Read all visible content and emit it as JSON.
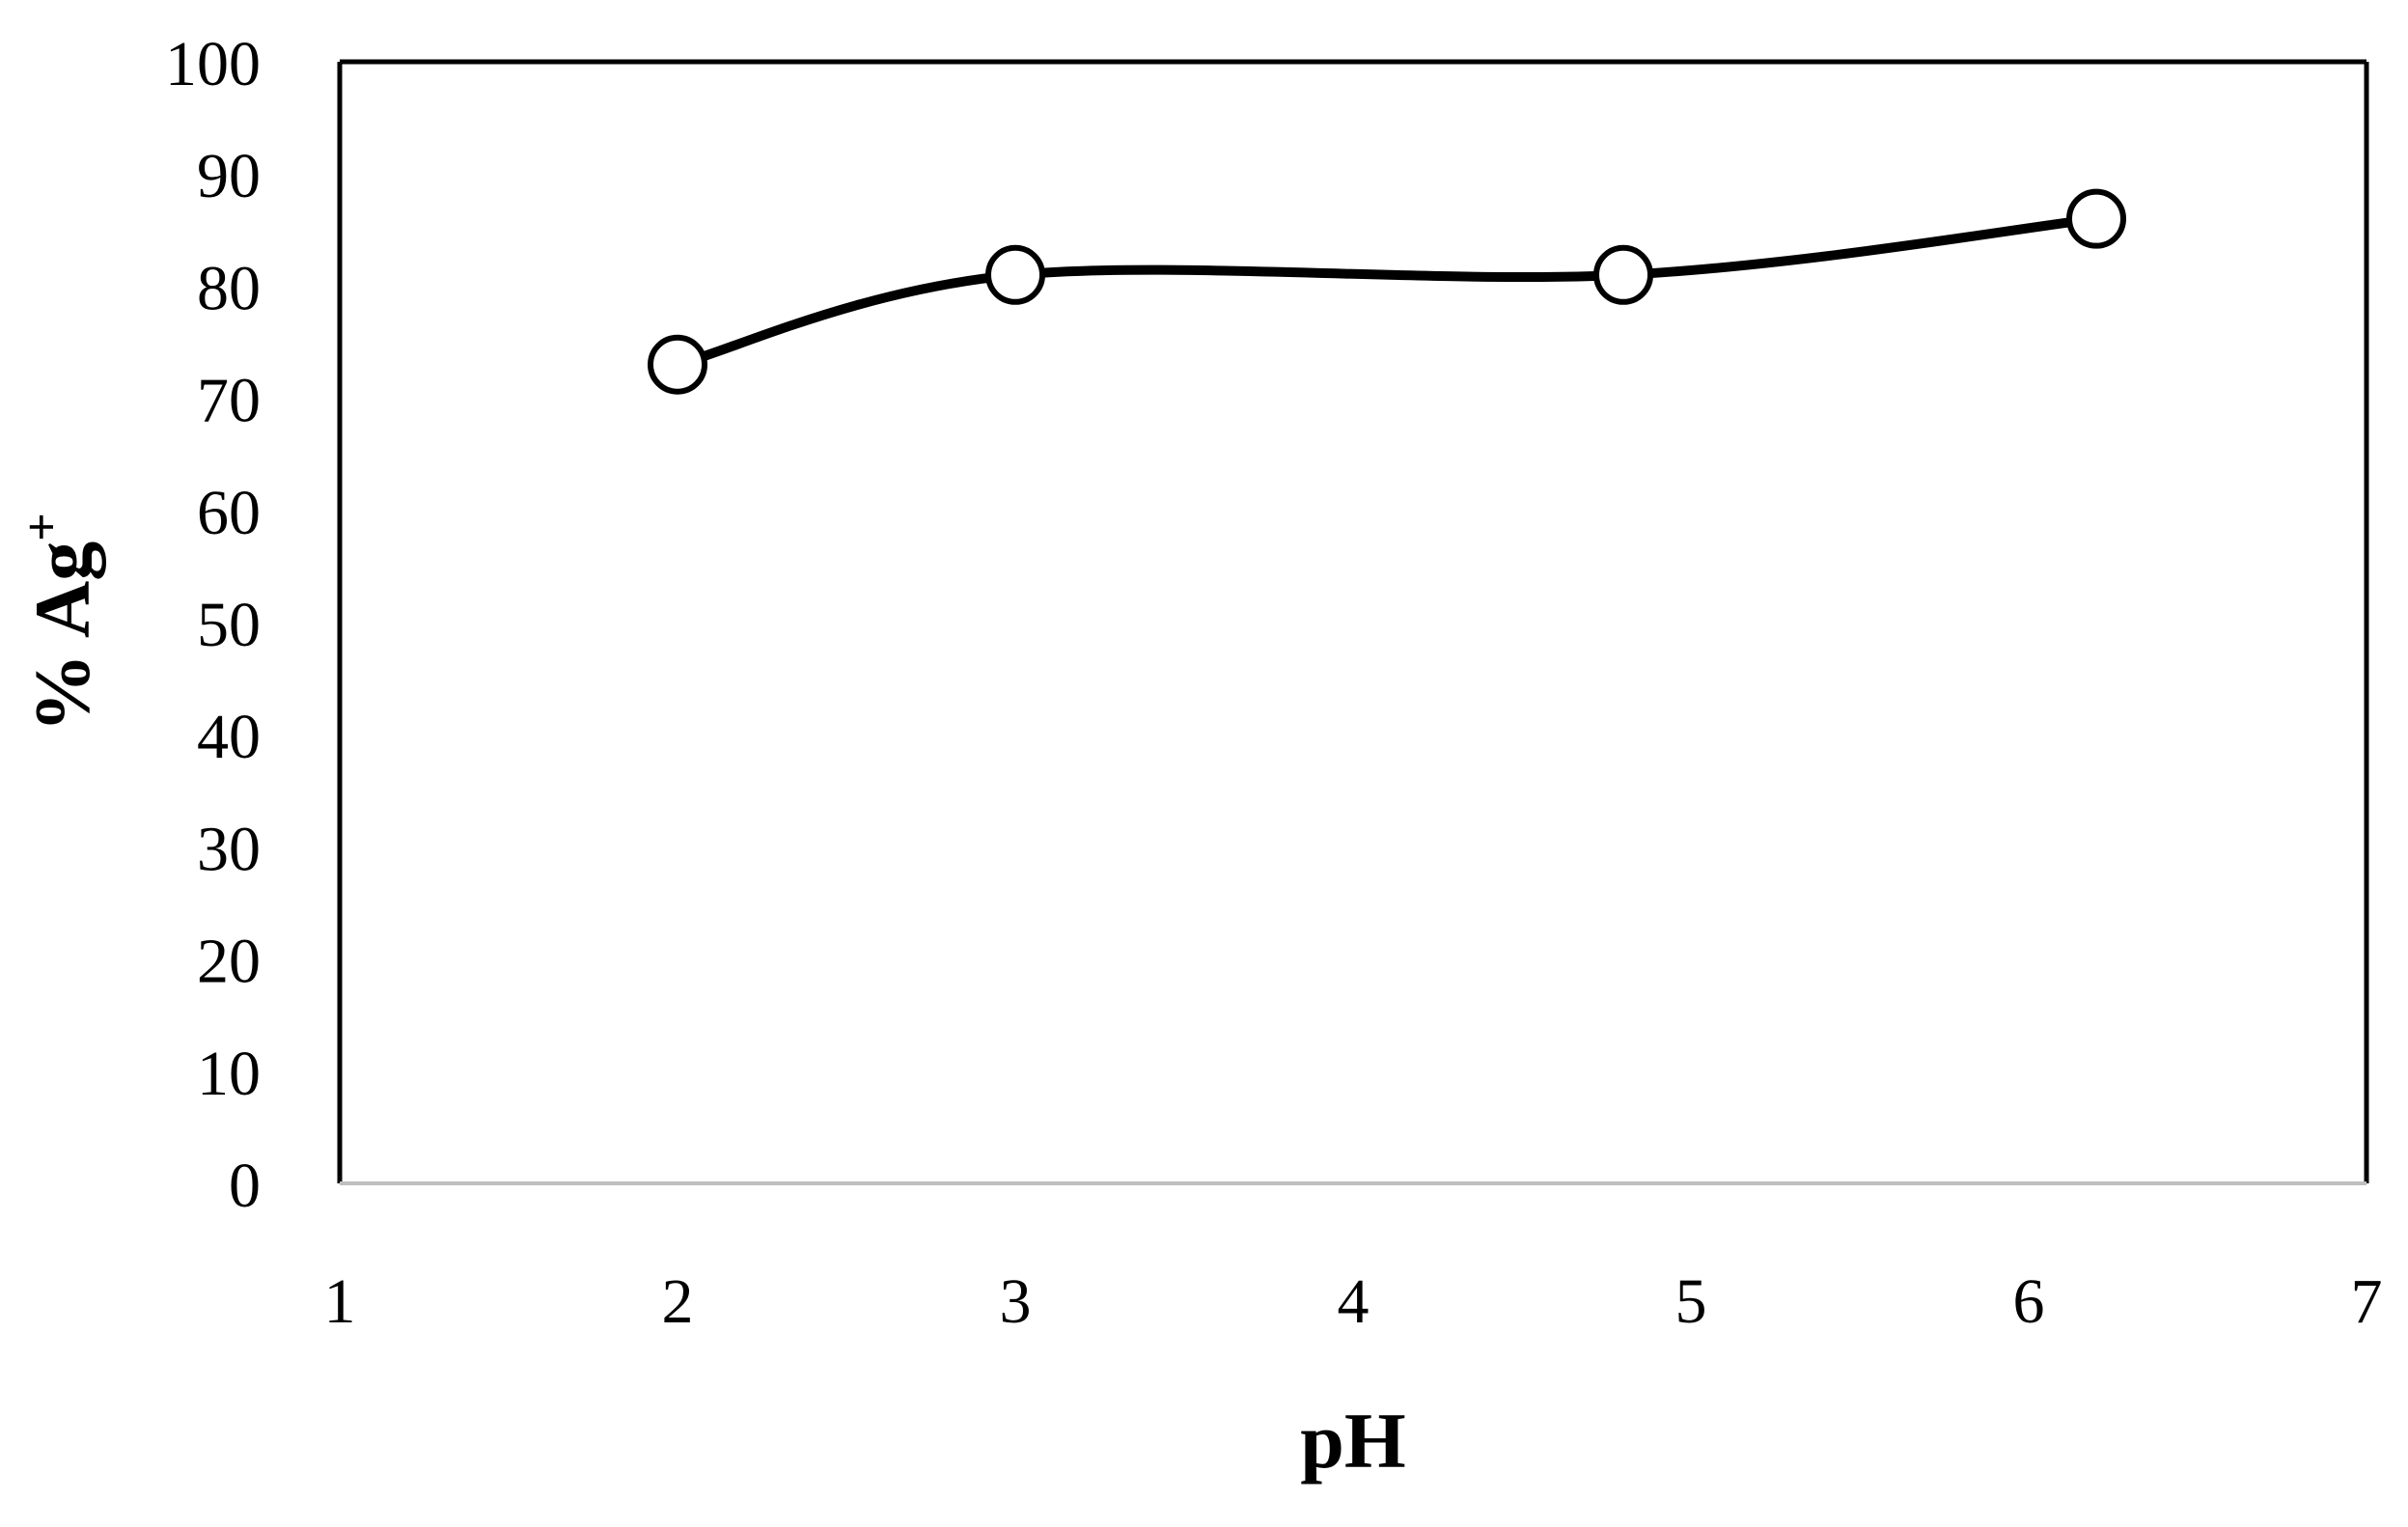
{
  "chart_data": {
    "type": "line",
    "title": "",
    "xlabel": "pH",
    "ylabel": "% Ag",
    "ylabel_superscript": "+",
    "xlim": [
      1,
      7
    ],
    "ylim": [
      0,
      100
    ],
    "x_ticks": [
      1,
      2,
      3,
      4,
      5,
      6,
      7
    ],
    "y_ticks": [
      0,
      10,
      20,
      30,
      40,
      50,
      60,
      70,
      80,
      90,
      100
    ],
    "grid": false,
    "legend": "none",
    "smooth": true,
    "marker": "open-circle",
    "series": [
      {
        "x": [
          2,
          3,
          4.8,
          6.2
        ],
        "y": [
          73,
          81,
          81,
          86
        ],
        "color": "#000000"
      }
    ]
  }
}
